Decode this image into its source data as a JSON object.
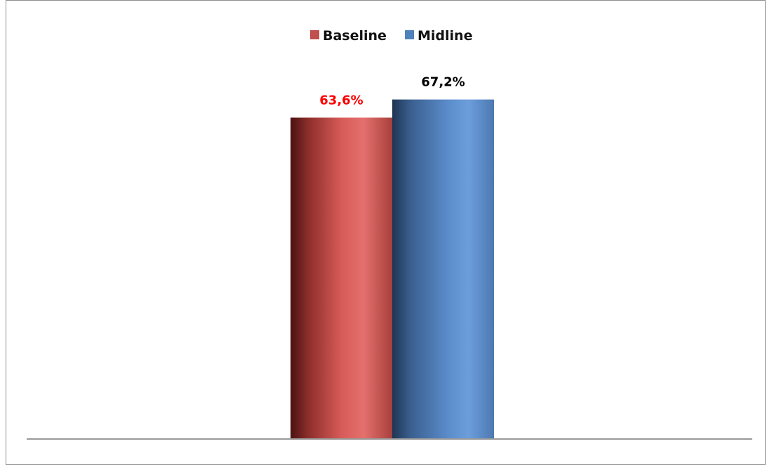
{
  "chart_data": {
    "type": "bar",
    "categories": [
      ""
    ],
    "series": [
      {
        "name": "Baseline",
        "values": [
          63.6
        ],
        "label": "63,6%",
        "color": "#c0504d",
        "label_color": "#ff0000"
      },
      {
        "name": "Midline",
        "values": [
          67.2
        ],
        "label": "67,2%",
        "color": "#4f81bd",
        "label_color": "#000000"
      }
    ],
    "title": "",
    "xlabel": "",
    "ylabel": "",
    "ylim": [
      0,
      73
    ],
    "grid": false,
    "legend_position": "top-center"
  }
}
